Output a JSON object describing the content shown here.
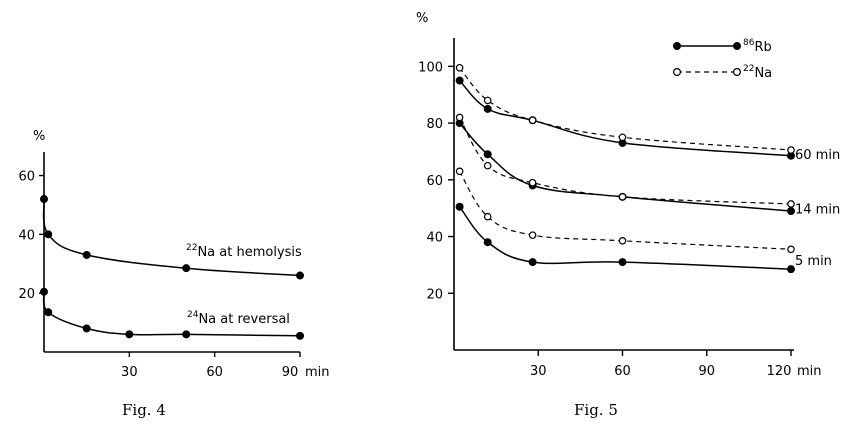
{
  "figures": {
    "fig4": {
      "caption": "Fig. 4"
    },
    "fig5": {
      "caption": "Fig. 5"
    }
  },
  "chart_data": [
    {
      "type": "line",
      "title": "",
      "ylabel": "%",
      "x_unit": "min",
      "xlim": [
        0,
        90
      ],
      "ylim": [
        0,
        68
      ],
      "x_ticks": [
        30,
        60,
        90
      ],
      "y_ticks": [
        20,
        40,
        60
      ],
      "series": [
        {
          "name": "22Na at hemolysis",
          "isotope_mass": "22",
          "label_text": "Na at hemolysis",
          "line": "solid",
          "marker": "filled",
          "x": [
            0,
            1.5,
            15,
            50,
            90
          ],
          "y": [
            52,
            40,
            33,
            28.5,
            26
          ]
        },
        {
          "name": "24Na at reversal",
          "isotope_mass": "24",
          "label_text": "Na at reversal",
          "line": "solid",
          "marker": "filled",
          "x": [
            0,
            1.5,
            15,
            30,
            50,
            90
          ],
          "y": [
            20.5,
            13.5,
            8,
            6,
            6,
            5.5
          ]
        }
      ]
    },
    {
      "type": "line",
      "title": "",
      "ylabel": "%",
      "x_unit": "min",
      "xlim": [
        0,
        120
      ],
      "ylim": [
        0,
        110
      ],
      "x_ticks": [
        30,
        60,
        90,
        120
      ],
      "y_ticks": [
        20,
        40,
        60,
        80,
        100
      ],
      "legend": [
        {
          "name": "86Rb",
          "isotope_mass": "86",
          "symbol": "Rb",
          "line": "solid",
          "marker": "filled"
        },
        {
          "name": "22Na",
          "isotope_mass": "22",
          "symbol": "Na",
          "line": "dashed",
          "marker": "open"
        }
      ],
      "groups": [
        {
          "label": "60 min",
          "series": [
            {
              "name": "86Rb",
              "line": "solid",
              "marker": "filled",
              "x": [
                2,
                12,
                28,
                60,
                120
              ],
              "y": [
                95,
                85,
                81,
                73,
                68.5
              ]
            },
            {
              "name": "22Na",
              "line": "dashed",
              "marker": "open",
              "x": [
                2,
                12,
                28,
                60,
                120
              ],
              "y": [
                99.5,
                88,
                81,
                75,
                70.5
              ]
            }
          ]
        },
        {
          "label": "14 min",
          "series": [
            {
              "name": "86Rb",
              "line": "solid",
              "marker": "filled",
              "x": [
                2,
                12,
                28,
                60,
                120
              ],
              "y": [
                80,
                69,
                58,
                54,
                49
              ]
            },
            {
              "name": "22Na",
              "line": "dashed",
              "marker": "open",
              "x": [
                2,
                12,
                28,
                60,
                120
              ],
              "y": [
                82,
                65,
                59,
                54,
                51.5
              ]
            }
          ]
        },
        {
          "label": "5 min",
          "series": [
            {
              "name": "86Rb",
              "line": "solid",
              "marker": "filled",
              "x": [
                2,
                12,
                28,
                60,
                120
              ],
              "y": [
                50.5,
                38,
                31,
                31,
                28.5
              ]
            },
            {
              "name": "22Na",
              "line": "dashed",
              "marker": "open",
              "x": [
                2,
                12,
                28,
                60,
                120
              ],
              "y": [
                63,
                47,
                40.5,
                38.5,
                35.5
              ]
            }
          ]
        }
      ]
    }
  ]
}
